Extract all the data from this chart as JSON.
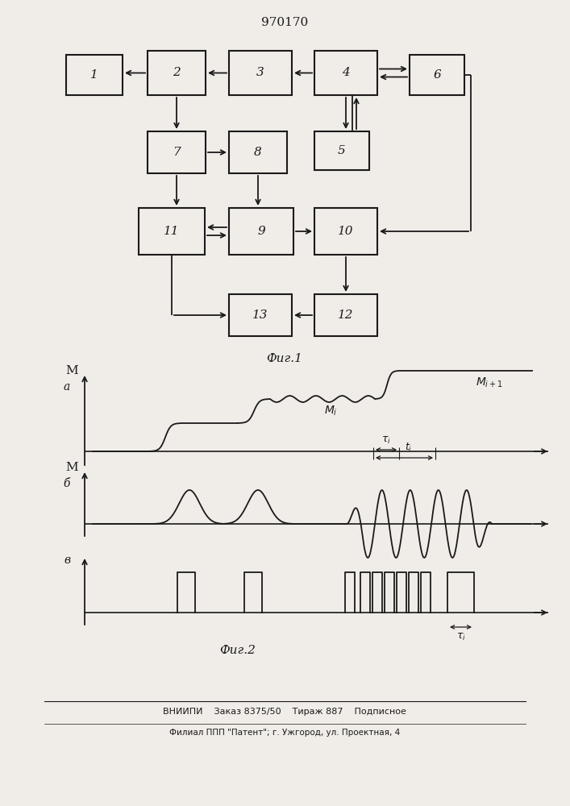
{
  "title": "970170",
  "fig1_label": "Фиг.1",
  "fig2_label": "Фиг.2",
  "background_color": "#f0ede8",
  "box_color": "#f0ede8",
  "line_color": "#1a1a1a",
  "footer_line1": "ВНИИПИ    Заказ 8375/50    Тираж 887    Подписное",
  "footer_line2": "Филиал ППП \"Патент\"; г. Ужгород, ул. Проектная, 4"
}
